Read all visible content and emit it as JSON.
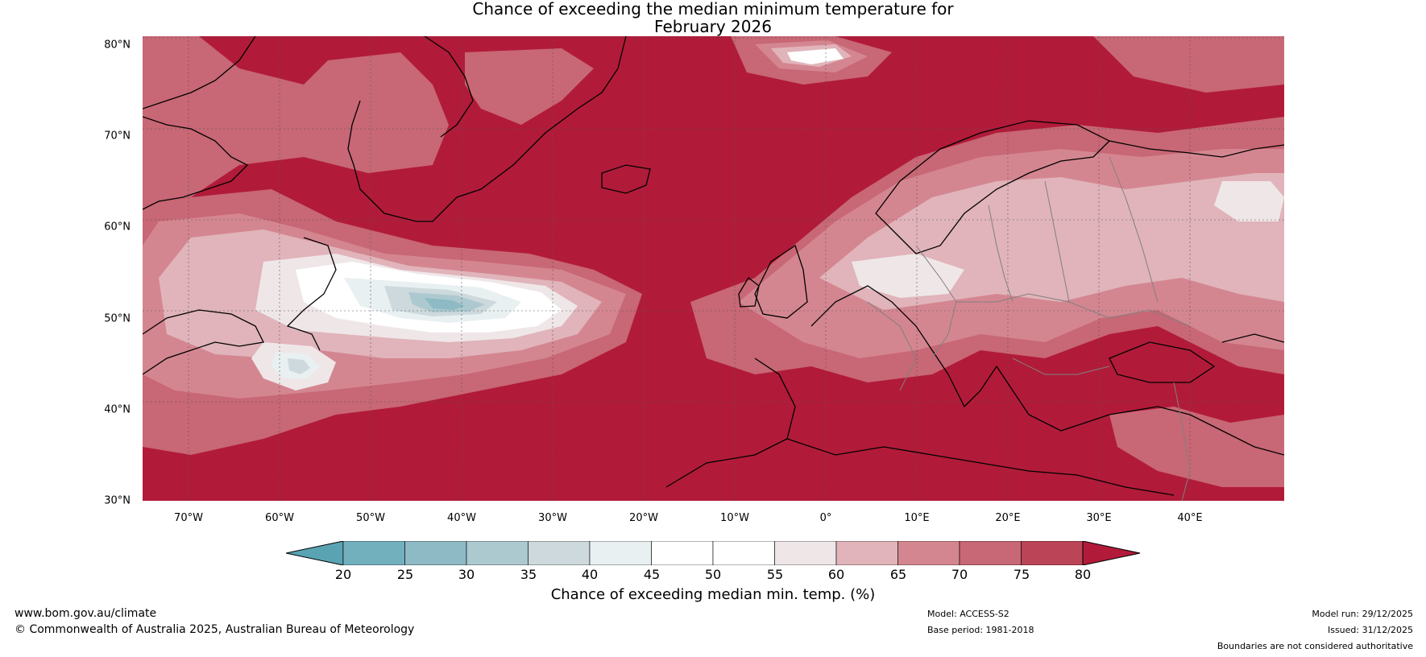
{
  "title": {
    "line1": "Chance of exceeding the median minimum temperature for",
    "line2": "February 2026"
  },
  "map": {
    "lat_labels": [
      "80°N",
      "70°N",
      "60°N",
      "50°N",
      "40°N",
      "30°N"
    ],
    "lon_labels": [
      "70°W",
      "60°W",
      "50°W",
      "40°W",
      "30°W",
      "20°W",
      "10°W",
      "0°",
      "10°E",
      "20°E",
      "30°E",
      "40°E"
    ]
  },
  "colorbar": {
    "ticks": [
      "20",
      "25",
      "30",
      "35",
      "40",
      "45",
      "50",
      "55",
      "60",
      "65",
      "70",
      "75",
      "80"
    ],
    "colors": [
      "#5aa3b3",
      "#72b0be",
      "#8dbac5",
      "#adc9d0",
      "#cdd9dc",
      "#e9f0f1",
      "#ffffff",
      "#ffffff",
      "#efe6e8",
      "#e0b4ba",
      "#d48690",
      "#c86775",
      "#bb4456",
      "#b11b39"
    ],
    "label": "Chance of exceeding median min. temp. (%)"
  },
  "footer": {
    "url": "www.bom.gov.au/climate",
    "copyright": "© Commonwealth of Australia 2025, Australian Bureau of Meteorology",
    "model": "Model: ACCESS-S2",
    "base_period": "Base period: 1981-2018",
    "model_run": "Model run: 29/12/2025",
    "issued": "Issued: 31/12/2025",
    "disclaimer": "Boundaries are not considered authoritative"
  }
}
